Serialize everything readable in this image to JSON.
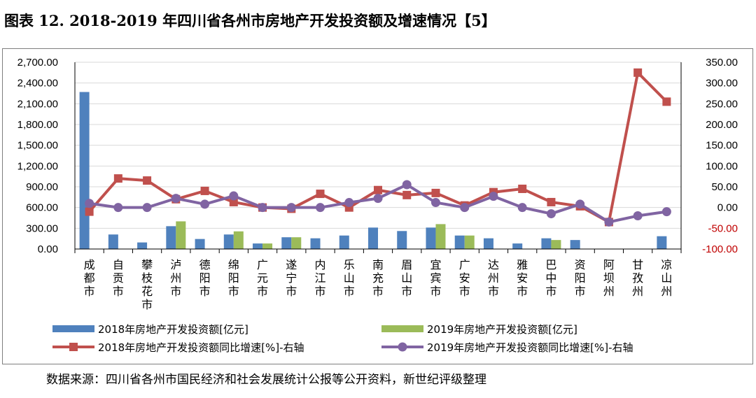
{
  "title": "图表 12. 2018-2019 年四川省各州市房地产开发投资额及增速情况【5】",
  "source": "数据来源：四川省各州市国民经济和社会发展统计公报等公开资料，新世纪评级整理",
  "colors": {
    "bar2018": "#4f81bd",
    "bar2019": "#9bbb59",
    "line2018": "#c0504d",
    "line2019": "#8064a2",
    "gridline": "#d9d9d9",
    "negative_tick": "#c00000"
  },
  "chart_data": {
    "type": "bar",
    "categories": [
      "成都市",
      "自贡市",
      "攀枝花市",
      "泸州市",
      "德阳市",
      "绵阳市",
      "广元市",
      "遂宁市",
      "内江市",
      "乐山市",
      "南充市",
      "眉山市",
      "宜宾市",
      "广安市",
      "达州市",
      "雅安市",
      "巴中市",
      "资阳市",
      "阿坝州",
      "甘孜州",
      "凉山州"
    ],
    "y_left": {
      "ylim": [
        0,
        2700
      ],
      "ticks": [
        "0.00",
        "300.00",
        "600.00",
        "900.00",
        "1,200.00",
        "1,500.00",
        "1,800.00",
        "2,100.00",
        "2,400.00",
        "2,700.00"
      ]
    },
    "y_right": {
      "ylim": [
        -100,
        350
      ],
      "ticks": [
        "-100.00",
        "-50.00",
        "0.00",
        "50.00",
        "100.00",
        "150.00",
        "200.00",
        "250.00",
        "300.00",
        "350.00"
      ]
    },
    "grid": "horizontal",
    "legend_position": "bottom",
    "series": [
      {
        "name": "2018年房地产开发投资额[亿元]",
        "type": "bar",
        "axis": "left",
        "values": [
          2270,
          210,
          95,
          330,
          145,
          210,
          80,
          170,
          155,
          195,
          310,
          260,
          310,
          195,
          155,
          80,
          155,
          130,
          null,
          null,
          185
        ]
      },
      {
        "name": "2019年房地产开发投资额[亿元]",
        "type": "bar",
        "axis": "left",
        "values": [
          null,
          null,
          null,
          400,
          null,
          255,
          80,
          170,
          null,
          null,
          null,
          null,
          360,
          195,
          null,
          null,
          130,
          null,
          null,
          null,
          null
        ]
      },
      {
        "name": "2018年房地产开发投资额同比增速[%]-右轴",
        "type": "line",
        "axis": "right",
        "values": [
          -10,
          70,
          65,
          20,
          40,
          13,
          0,
          -3,
          33,
          0,
          42,
          30,
          35,
          5,
          37,
          45,
          13,
          3,
          -35,
          325,
          255
        ]
      },
      {
        "name": "2019年房地产开发投资额同比增速[%]-右轴",
        "type": "line",
        "axis": "right",
        "values": [
          10,
          0,
          0,
          22,
          8,
          28,
          0,
          0,
          0,
          12,
          22,
          55,
          12,
          0,
          27,
          0,
          -15,
          8,
          -35,
          -20,
          -10
        ]
      }
    ]
  }
}
